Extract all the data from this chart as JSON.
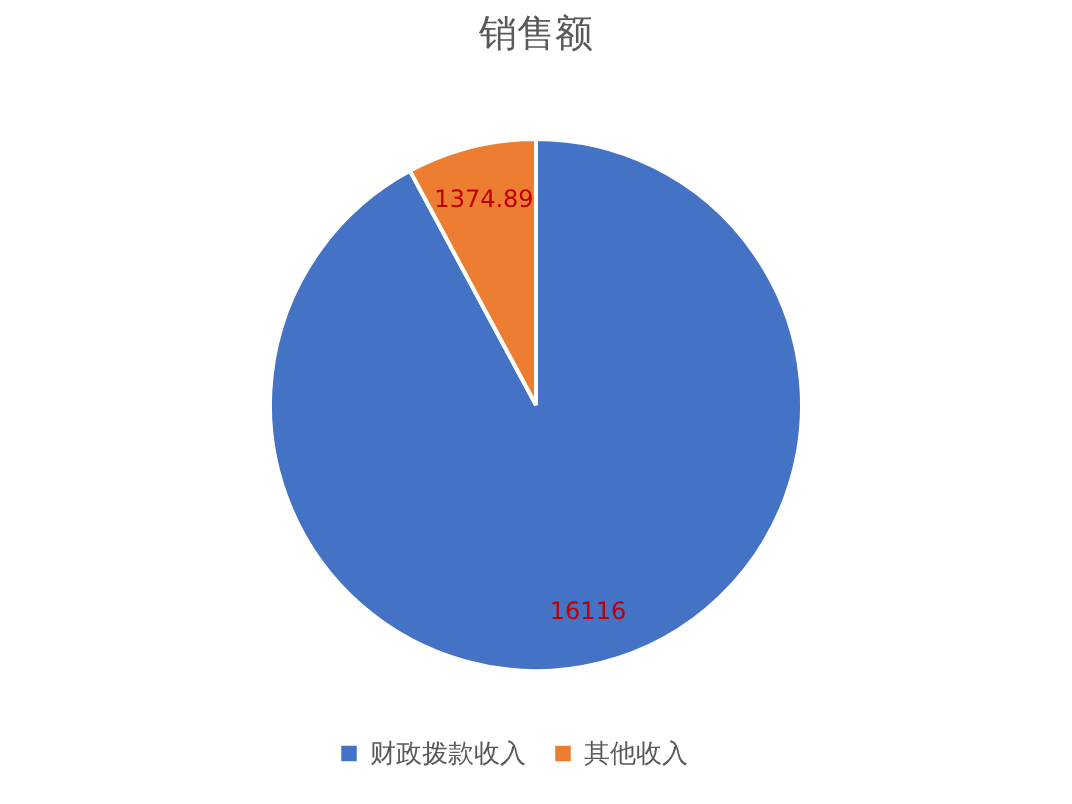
{
  "chart_data": {
    "type": "pie",
    "title": "销售额",
    "categories": [
      "财政拨款收入",
      "其他收入"
    ],
    "values": [
      16116,
      1374.89
    ],
    "colors": [
      "#4472c4",
      "#ed7d31"
    ],
    "data_labels": true,
    "legend": "bottom"
  }
}
